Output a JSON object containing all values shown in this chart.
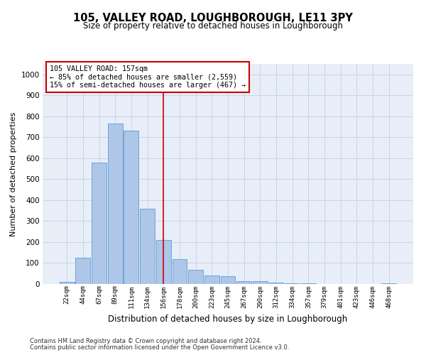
{
  "title": "105, VALLEY ROAD, LOUGHBOROUGH, LE11 3PY",
  "subtitle": "Size of property relative to detached houses in Loughborough",
  "xlabel": "Distribution of detached houses by size in Loughborough",
  "ylabel": "Number of detached properties",
  "categories": [
    "22sqm",
    "44sqm",
    "67sqm",
    "89sqm",
    "111sqm",
    "134sqm",
    "156sqm",
    "178sqm",
    "200sqm",
    "223sqm",
    "245sqm",
    "267sqm",
    "290sqm",
    "312sqm",
    "334sqm",
    "357sqm",
    "379sqm",
    "401sqm",
    "423sqm",
    "446sqm",
    "468sqm"
  ],
  "values": [
    10,
    125,
    578,
    765,
    730,
    360,
    210,
    118,
    67,
    40,
    36,
    14,
    14,
    8,
    4,
    3,
    1,
    0,
    0,
    0,
    5
  ],
  "bar_color": "#aec6e8",
  "bar_edge_color": "#5b9bd5",
  "vline_index": 6,
  "annotation_text_line1": "105 VALLEY ROAD: 157sqm",
  "annotation_text_line2": "← 85% of detached houses are smaller (2,559)",
  "annotation_text_line3": "15% of semi-detached houses are larger (467) →",
  "annotation_box_color": "#ffffff",
  "annotation_box_edge_color": "#cc0000",
  "vline_color": "#cc0000",
  "grid_color": "#c8d4e8",
  "background_color": "#e8eef8",
  "ylim": [
    0,
    1050
  ],
  "yticks": [
    0,
    100,
    200,
    300,
    400,
    500,
    600,
    700,
    800,
    900,
    1000
  ],
  "footer_line1": "Contains HM Land Registry data © Crown copyright and database right 2024.",
  "footer_line2": "Contains public sector information licensed under the Open Government Licence v3.0."
}
